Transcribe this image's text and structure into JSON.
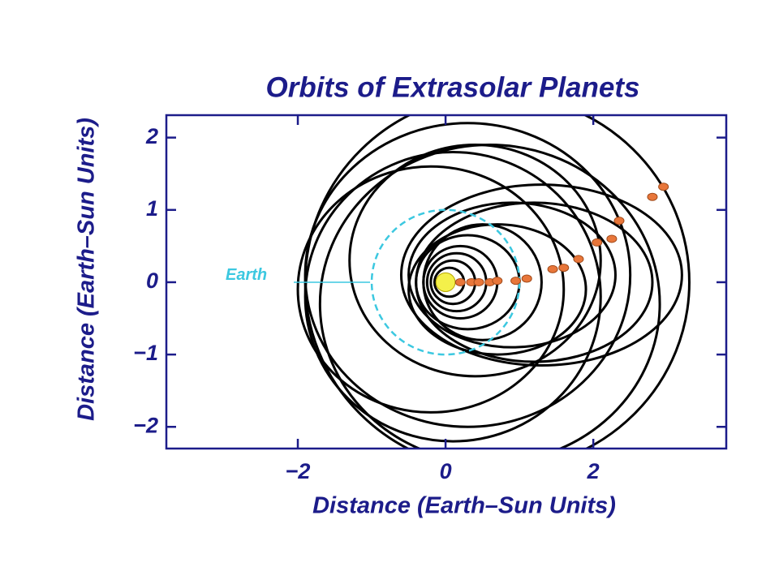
{
  "chart_data": {
    "type": "orbit",
    "title": "Orbits of Extrasolar Planets",
    "xlabel": "Distance  (Earth–Sun Units)",
    "ylabel": "Distance  (Earth–Sun Units)",
    "xlim": [
      -3.78,
      3.8
    ],
    "ylim": [
      -2.3,
      2.31
    ],
    "xticks": [
      {
        "value": -2,
        "label": "−2"
      },
      0,
      2
    ],
    "yticks": [
      {
        "value": -2,
        "label": "−2"
      },
      {
        "value": -1,
        "label": "−1"
      },
      0,
      1,
      2
    ],
    "axis_color": "#1c1c8a",
    "orbit_color": "#000000",
    "orbits": [
      {
        "cx": 0.7,
        "cy": 0.0,
        "rx": 2.6,
        "ry": 2.6
      },
      {
        "cx": 0.3,
        "cy": 0.1,
        "rx": 2.2,
        "ry": 2.1
      },
      {
        "cx": 0.1,
        "cy": -0.2,
        "rx": 2.0,
        "ry": 2.0
      },
      {
        "cx": 0.6,
        "cy": -0.3,
        "rx": 2.3,
        "ry": 2.2
      },
      {
        "cx": -0.2,
        "cy": -0.1,
        "rx": 1.8,
        "ry": 1.7
      },
      {
        "cx": 0.4,
        "cy": 0.3,
        "rx": 1.7,
        "ry": 1.6
      },
      {
        "cx": 1.3,
        "cy": 0.1,
        "rx": 1.9,
        "ry": 1.25
      },
      {
        "cx": 1.2,
        "cy": 0.0,
        "rx": 1.6,
        "ry": 1.1
      },
      {
        "cx": 0.9,
        "cy": 0.1,
        "rx": 1.4,
        "ry": 1.0
      },
      {
        "cx": 0.7,
        "cy": -0.1,
        "rx": 1.2,
        "ry": 0.9
      },
      {
        "cx": 0.5,
        "cy": 0.0,
        "rx": 0.8,
        "ry": 0.8
      },
      {
        "cx": 0.3,
        "cy": 0.0,
        "rx": 0.7,
        "ry": 0.65
      },
      {
        "cx": 0.2,
        "cy": 0.0,
        "rx": 0.5,
        "ry": 0.5
      },
      {
        "cx": 0.15,
        "cy": 0.0,
        "rx": 0.4,
        "ry": 0.4
      },
      {
        "cx": 0.1,
        "cy": 0.0,
        "rx": 0.3,
        "ry": 0.3
      },
      {
        "cx": 0.05,
        "cy": 0.0,
        "rx": 0.2,
        "ry": 0.2
      }
    ],
    "earth_orbit": {
      "name": "Earth",
      "r": 1,
      "color": "#3cc8e0"
    },
    "sun": {
      "r": 0.13,
      "color": "#f4f04a"
    },
    "planets": {
      "color": "#e8763a",
      "x": [
        0.2,
        0.35,
        0.45,
        0.6,
        0.7,
        0.95,
        1.1,
        1.45,
        1.6,
        1.8,
        2.05,
        2.25,
        2.35,
        2.8,
        2.95
      ],
      "y": [
        0.0,
        0.0,
        0.0,
        0.0,
        0.02,
        0.02,
        0.05,
        0.18,
        0.2,
        0.32,
        0.55,
        0.6,
        0.85,
        1.18,
        1.32
      ]
    }
  }
}
